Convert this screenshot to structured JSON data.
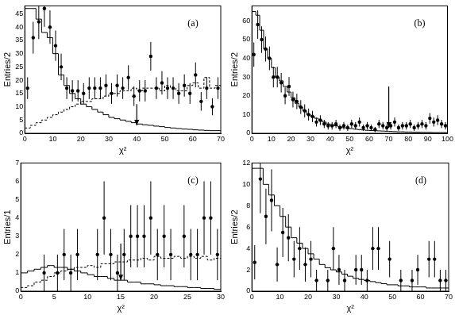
{
  "chart_data": [
    {
      "type": "histogram",
      "title": "(a)",
      "x_label": "χ²",
      "y_label": "Entries/2",
      "grid": false,
      "bins": [
        0,
        2,
        4,
        6,
        8,
        10,
        12,
        14,
        16,
        18,
        20,
        22,
        24,
        26,
        28,
        30,
        32,
        34,
        36,
        38,
        40,
        42,
        44,
        46,
        48,
        50,
        52,
        54,
        56,
        58,
        60,
        62,
        64,
        66,
        68,
        70
      ],
      "xlim": [
        0,
        70
      ],
      "xticks": [
        0,
        10,
        20,
        30,
        40,
        50,
        60,
        70
      ],
      "ylim": [
        0,
        48
      ],
      "yticks": [
        0,
        5,
        10,
        15,
        20,
        25,
        30,
        35,
        40,
        45
      ],
      "arrow": {
        "x": 40,
        "y_start": 11,
        "y_end": 3
      },
      "series": [
        {
          "type": "bar",
          "color": "#000000",
          "line_style": "solid",
          "values": [
            47,
            47,
            43,
            38,
            36,
            30,
            22,
            18,
            15,
            13,
            11,
            10,
            9,
            8,
            7,
            6,
            5.5,
            5,
            4.5,
            4,
            3.5,
            3.2,
            3,
            2.7,
            2.5,
            2.2,
            2,
            1.8,
            1.6,
            1.5,
            1.3,
            1.2,
            1.1,
            1,
            1
          ]
        },
        {
          "type": "bar",
          "color": "#000000",
          "line_style": "dashed",
          "values": [
            2,
            3,
            4,
            5,
            6,
            7,
            8,
            9,
            10,
            11,
            12,
            12,
            13,
            13,
            14,
            15,
            15,
            16,
            16,
            17,
            16,
            17,
            17,
            17,
            16,
            18,
            17,
            16,
            16,
            18,
            19,
            17,
            21,
            17,
            18
          ]
        },
        {
          "type": "scatter",
          "color": "#000000",
          "marker": "circle",
          "values": [
            17,
            36,
            42,
            47,
            40,
            33,
            25,
            17,
            16,
            16,
            15,
            17,
            17,
            17,
            18,
            15,
            18,
            17,
            21,
            14,
            16,
            16,
            29,
            17,
            19,
            17,
            17,
            15,
            18,
            15,
            22,
            12,
            17,
            10,
            17
          ],
          "errors": [
            4.1,
            6,
            6.5,
            6.9,
            6.3,
            5.7,
            5,
            4.1,
            4,
            4,
            3.9,
            4.1,
            4.1,
            4.1,
            4.2,
            3.9,
            4.2,
            4.1,
            4.6,
            3.7,
            4,
            4,
            5.4,
            4.1,
            4.4,
            4.1,
            4.1,
            3.9,
            4.2,
            3.9,
            4.7,
            3.5,
            4.1,
            3.2,
            4.1
          ]
        }
      ]
    },
    {
      "type": "histogram",
      "title": "(b)",
      "x_label": "χ²",
      "y_label": "Entries/2",
      "grid": false,
      "bins": [
        0,
        2,
        4,
        6,
        8,
        10,
        12,
        14,
        16,
        18,
        20,
        22,
        24,
        26,
        28,
        30,
        32,
        34,
        36,
        38,
        40,
        42,
        44,
        46,
        48,
        50,
        52,
        54,
        56,
        58,
        60,
        62,
        64,
        66,
        68,
        70,
        72,
        74,
        76,
        78,
        80,
        82,
        84,
        86,
        88,
        90,
        92,
        94,
        96,
        98,
        100
      ],
      "xlim": [
        0,
        100
      ],
      "xticks": [
        0,
        10,
        20,
        30,
        40,
        50,
        60,
        70,
        80,
        90,
        100
      ],
      "ylim": [
        0,
        68
      ],
      "yticks": [
        0,
        10,
        20,
        30,
        40,
        50,
        60
      ],
      "arrow": {
        "x": 70,
        "y_start": 25,
        "y_end": 3
      },
      "series": [
        {
          "type": "bar",
          "color": "#000000",
          "line_style": "solid",
          "values": [
            65,
            63,
            55,
            45,
            40,
            35,
            30,
            28,
            25,
            22,
            19,
            16,
            14,
            12,
            10,
            9,
            8,
            7,
            6,
            5,
            4.5,
            4,
            3.5,
            3,
            2.8,
            2.5,
            2.2,
            2,
            1.8,
            1.6,
            1.5,
            1.4,
            1.3,
            1.2,
            1.1,
            1,
            0.9,
            0.8,
            0.8,
            0.7,
            0.7,
            0.6,
            0.6,
            0.5,
            0.5,
            0.5,
            0.4,
            0.4,
            0.4,
            0.4
          ]
        },
        {
          "type": "scatter",
          "color": "#000000",
          "marker": "circle",
          "values": [
            42,
            58,
            50,
            45,
            40,
            30,
            30,
            27,
            20,
            25,
            18,
            17,
            14,
            12,
            10,
            9,
            6,
            7,
            5,
            4,
            4,
            5,
            3,
            4,
            3,
            5,
            4,
            6,
            3,
            4,
            3,
            2,
            5,
            4,
            3,
            4,
            6,
            3,
            4,
            4,
            5,
            3,
            4,
            5,
            4,
            8,
            6,
            7,
            5,
            4
          ],
          "errors": [
            6.5,
            7.6,
            7.1,
            6.7,
            6.3,
            5.5,
            5.5,
            5.2,
            4.5,
            5,
            4.2,
            4.1,
            3.7,
            3.5,
            3.2,
            3,
            2.4,
            2.6,
            2.2,
            2,
            2,
            2.2,
            1.7,
            2,
            1.7,
            2.2,
            2,
            2.4,
            1.7,
            2,
            1.7,
            1.4,
            2.2,
            2,
            1.7,
            2,
            2.4,
            1.7,
            2,
            2,
            2.2,
            1.7,
            2,
            2.2,
            2,
            2.8,
            2.4,
            2.6,
            2.2,
            2
          ]
        }
      ]
    },
    {
      "type": "histogram",
      "title": "(c)",
      "x_label": "χ²",
      "y_label": "Entries/1",
      "grid": false,
      "bins": [
        0,
        1,
        2,
        3,
        4,
        5,
        6,
        7,
        8,
        9,
        10,
        11,
        12,
        13,
        14,
        15,
        16,
        17,
        18,
        19,
        20,
        21,
        22,
        23,
        24,
        25,
        26,
        27,
        28,
        29,
        30
      ],
      "xlim": [
        0,
        30
      ],
      "xticks": [
        0,
        5,
        10,
        15,
        20,
        25,
        30
      ],
      "ylim": [
        0,
        7
      ],
      "yticks": [
        0,
        1,
        2,
        3,
        4,
        5,
        6,
        7
      ],
      "arrow": {
        "x": 15,
        "y_start": 2.6,
        "y_end": 0.6
      },
      "series": [
        {
          "type": "bar",
          "color": "#000000",
          "line_style": "solid",
          "values": [
            1.0,
            1.1,
            1.2,
            1.3,
            1.4,
            1.3,
            1.3,
            1.2,
            1.1,
            1.0,
            0.9,
            0.8,
            0.8,
            0.7,
            0.6,
            0.6,
            0.5,
            0.5,
            0.4,
            0.4,
            0.35,
            0.3,
            0.3,
            0.25,
            0.25,
            0.2,
            0.2,
            0.15,
            0.15,
            0.1
          ]
        },
        {
          "type": "bar",
          "color": "#000000",
          "line_style": "dashed",
          "values": [
            0.2,
            0.3,
            0.5,
            0.6,
            0.8,
            1.0,
            1.1,
            1.2,
            1.3,
            1.3,
            1.4,
            1.3,
            1.5,
            1.5,
            1.6,
            1.6,
            1.7,
            1.7,
            1.8,
            1.7,
            1.9,
            1.8,
            1.8,
            1.9,
            1.8,
            1.9,
            1.8,
            1.9,
            1.7,
            1.8
          ]
        },
        {
          "type": "scatter",
          "color": "#000000",
          "marker": "circle",
          "values": [
            null,
            null,
            null,
            1,
            null,
            1,
            2,
            1,
            2,
            null,
            null,
            2,
            4,
            2,
            1,
            2,
            3,
            3,
            3,
            4,
            2,
            3,
            2,
            null,
            3,
            2,
            2,
            4,
            4,
            2
          ],
          "errors": [
            null,
            null,
            null,
            1,
            null,
            1,
            1.4,
            1,
            1.4,
            null,
            null,
            1.4,
            2,
            1.4,
            1,
            1.4,
            1.7,
            1.7,
            1.7,
            2,
            1.4,
            1.7,
            1.4,
            null,
            1.7,
            1.4,
            1.4,
            2,
            2,
            1.4
          ]
        }
      ]
    },
    {
      "type": "histogram",
      "title": "(d)",
      "x_label": "χ²",
      "y_label": "Entries/2",
      "grid": false,
      "bins": [
        0,
        2,
        4,
        6,
        8,
        10,
        12,
        14,
        16,
        18,
        20,
        22,
        24,
        26,
        28,
        30,
        32,
        34,
        36,
        38,
        40,
        42,
        44,
        46,
        48,
        50,
        52,
        54,
        56,
        58,
        60,
        62,
        64,
        66,
        68,
        70
      ],
      "xlim": [
        0,
        70
      ],
      "xticks": [
        0,
        10,
        20,
        30,
        40,
        50,
        60,
        70
      ],
      "ylim": [
        0,
        12
      ],
      "yticks": [
        0,
        2,
        4,
        6,
        8,
        10,
        12
      ],
      "series": [
        {
          "type": "bar",
          "color": "#000000",
          "line_style": "solid",
          "values": [
            11.5,
            11.5,
            10,
            9,
            8,
            7,
            6,
            5,
            4.5,
            4,
            3.5,
            3,
            2.5,
            2.2,
            2,
            1.8,
            1.6,
            1.4,
            1.2,
            1.1,
            1,
            0.9,
            0.8,
            0.7,
            0.6,
            0.6,
            0.5,
            0.5,
            0.4,
            0.4,
            0.4,
            0.3,
            0.3,
            0.3,
            0.3
          ]
        },
        {
          "type": "scatter",
          "color": "#000000",
          "marker": "circle",
          "values": [
            2.7,
            10.5,
            7,
            8.5,
            2.5,
            5.5,
            5,
            3,
            4,
            2.5,
            3,
            1,
            null,
            1,
            4,
            2,
            1,
            null,
            2,
            2,
            1,
            4,
            4,
            null,
            3,
            null,
            1,
            null,
            1,
            2,
            null,
            3,
            3,
            1,
            1
          ],
          "errors": [
            1.6,
            3.2,
            2.6,
            2.9,
            1.6,
            2.3,
            2.2,
            1.7,
            2,
            1.6,
            1.7,
            1,
            null,
            1,
            2,
            1.4,
            1,
            null,
            1.4,
            1.4,
            1,
            2,
            2,
            null,
            1.7,
            null,
            1,
            null,
            1,
            1.4,
            null,
            1.7,
            1.7,
            1,
            1
          ]
        }
      ]
    }
  ]
}
